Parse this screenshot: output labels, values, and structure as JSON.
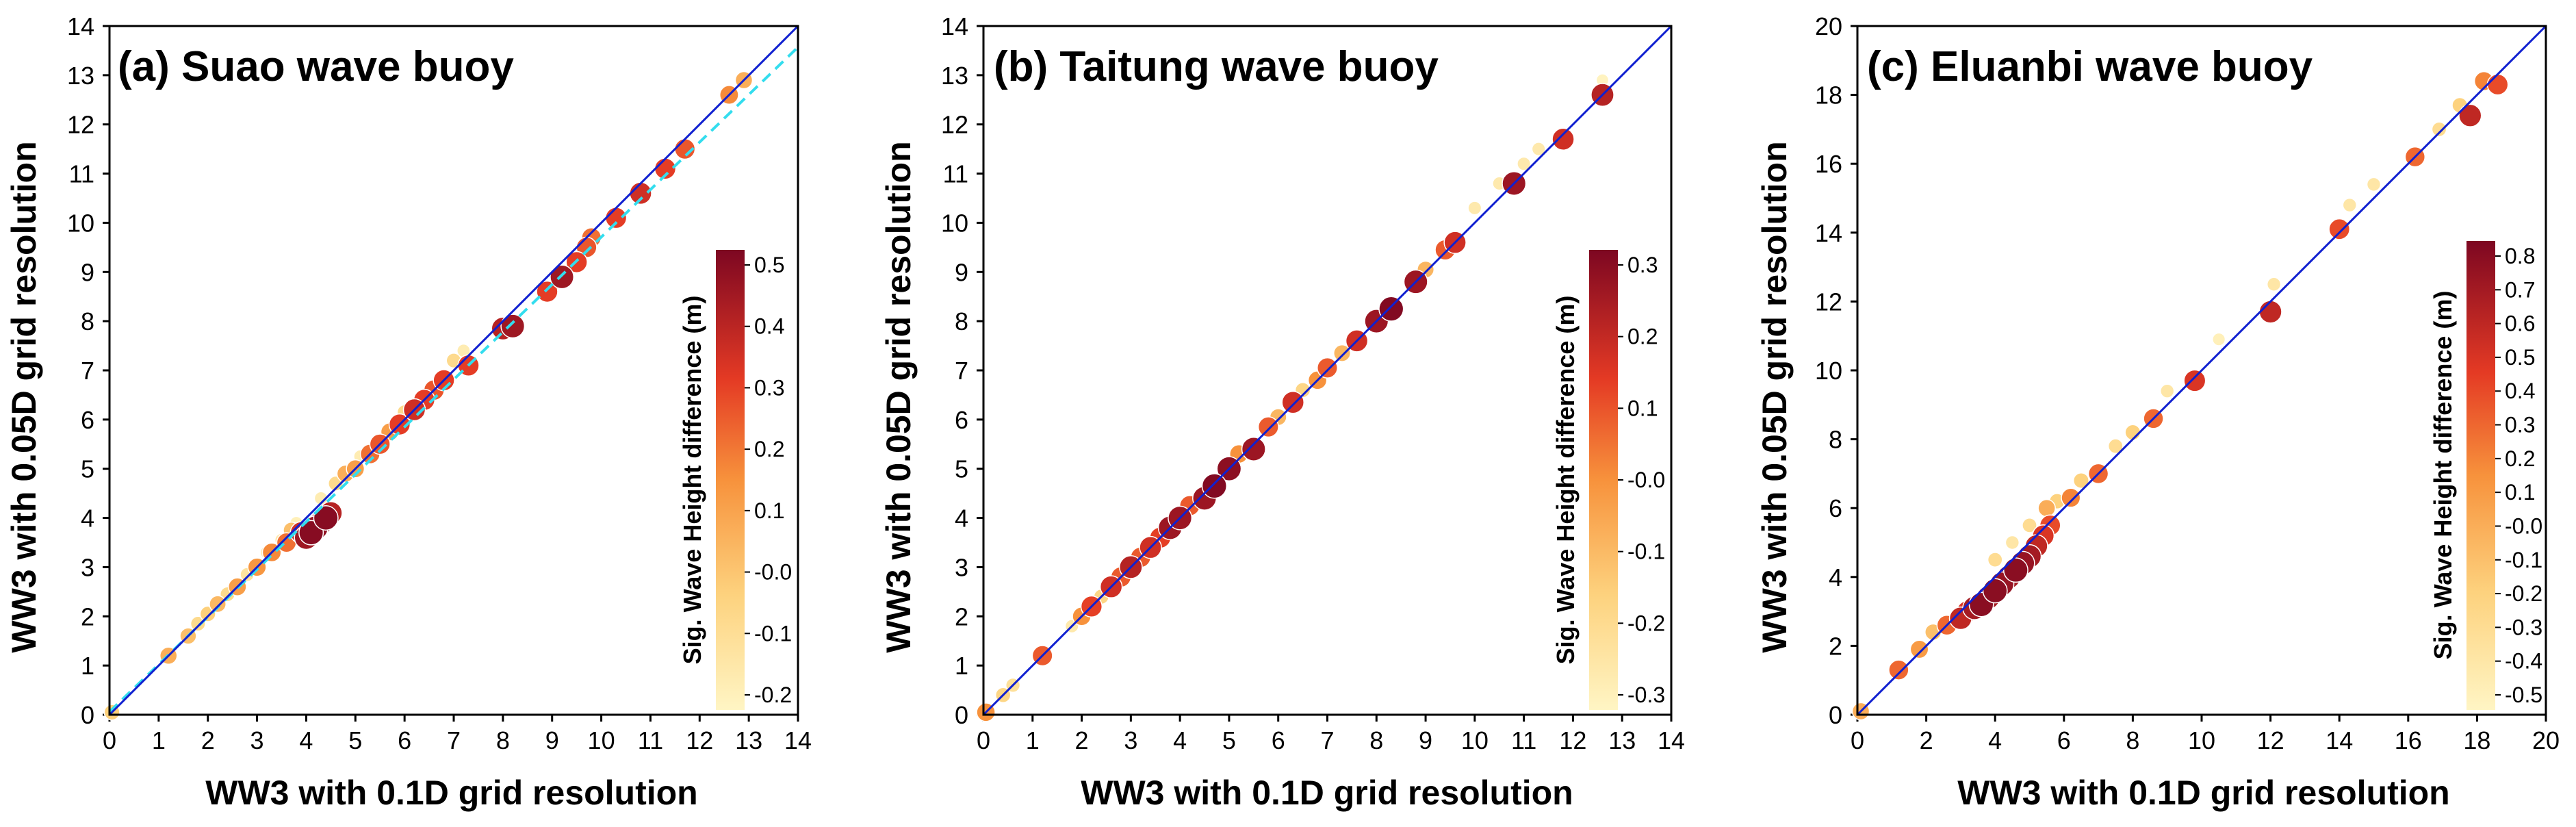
{
  "chart_data": [
    {
      "type": "scatter",
      "title": "(a) Suao wave buoy",
      "xlabel": "WW3 with 0.1D grid resolution",
      "ylabel": "WW3 with 0.05D grid resolution",
      "xlim": [
        0,
        14
      ],
      "ylim": [
        0,
        14
      ],
      "xticks": [
        "0",
        "1",
        "2",
        "3",
        "4",
        "5",
        "6",
        "7",
        "8",
        "9",
        "10",
        "11",
        "12",
        "13",
        "14"
      ],
      "yticks": [
        "0",
        "1",
        "2",
        "3",
        "4",
        "5",
        "6",
        "7",
        "8",
        "9",
        "10",
        "11",
        "12",
        "13",
        "14"
      ],
      "reference_line": "1:1",
      "fit_line": {
        "style": "dashed",
        "color": "#33ddee",
        "slope": 0.965,
        "intercept": 0.06
      },
      "colorbar": {
        "label": "Sig. Wave Height difference (m)",
        "min": -0.25,
        "max": 0.52,
        "ticks": [
          "0.5",
          "0.4",
          "0.3",
          "0.2",
          "0.1",
          "-0.0",
          "-0.1",
          "-0.2"
        ]
      },
      "points": [
        [
          0.05,
          0.05,
          -0.05
        ],
        [
          1.2,
          1.2,
          0.05
        ],
        [
          1.6,
          1.6,
          0.0
        ],
        [
          1.8,
          1.85,
          -0.1
        ],
        [
          2.0,
          2.05,
          -0.05
        ],
        [
          2.2,
          2.25,
          0.02
        ],
        [
          2.4,
          2.45,
          -0.1
        ],
        [
          2.6,
          2.6,
          0.1
        ],
        [
          2.8,
          2.85,
          -0.15
        ],
        [
          3.0,
          3.0,
          0.12
        ],
        [
          3.2,
          3.3,
          -0.2
        ],
        [
          3.3,
          3.3,
          0.15
        ],
        [
          3.5,
          3.55,
          -0.18
        ],
        [
          3.6,
          3.5,
          0.2
        ],
        [
          3.7,
          3.75,
          0.0
        ],
        [
          3.8,
          3.9,
          -0.22
        ],
        [
          3.9,
          3.7,
          0.35
        ],
        [
          4.0,
          3.6,
          0.45
        ],
        [
          4.1,
          3.7,
          0.5
        ],
        [
          4.2,
          3.8,
          0.48
        ],
        [
          4.3,
          3.9,
          0.45
        ],
        [
          4.4,
          4.0,
          0.5
        ],
        [
          4.5,
          4.1,
          0.4
        ],
        [
          4.3,
          4.4,
          -0.2
        ],
        [
          4.6,
          4.7,
          -0.1
        ],
        [
          4.8,
          4.9,
          0.05
        ],
        [
          5.0,
          5.0,
          0.1
        ],
        [
          5.1,
          5.25,
          -0.2
        ],
        [
          5.3,
          5.3,
          0.2
        ],
        [
          5.5,
          5.5,
          0.25
        ],
        [
          5.7,
          5.75,
          0.1
        ],
        [
          5.9,
          5.9,
          0.3
        ],
        [
          6.0,
          6.15,
          -0.1
        ],
        [
          6.2,
          6.2,
          0.35
        ],
        [
          6.4,
          6.4,
          0.3
        ],
        [
          6.6,
          6.6,
          0.25
        ],
        [
          6.8,
          6.8,
          0.3
        ],
        [
          7.0,
          7.2,
          -0.1
        ],
        [
          7.2,
          7.4,
          -0.2
        ],
        [
          7.3,
          7.1,
          0.3
        ],
        [
          8.0,
          7.85,
          0.4
        ],
        [
          8.2,
          7.9,
          0.45
        ],
        [
          8.9,
          8.6,
          0.3
        ],
        [
          9.2,
          8.9,
          0.45
        ],
        [
          9.5,
          9.2,
          0.3
        ],
        [
          9.7,
          9.5,
          0.25
        ],
        [
          9.8,
          9.7,
          0.2
        ],
        [
          10.3,
          10.1,
          0.3
        ],
        [
          10.8,
          10.6,
          0.35
        ],
        [
          11.3,
          11.1,
          0.3
        ],
        [
          11.7,
          11.5,
          0.25
        ],
        [
          12.6,
          12.6,
          0.15
        ],
        [
          12.9,
          12.9,
          0.05
        ]
      ]
    },
    {
      "type": "scatter",
      "title": "(b) Taitung wave buoy",
      "xlabel": "WW3 with 0.1D grid resolution",
      "ylabel": "WW3 with 0.05D grid resolution",
      "xlim": [
        0,
        14
      ],
      "ylim": [
        0,
        14
      ],
      "xticks": [
        "0",
        "1",
        "2",
        "3",
        "4",
        "5",
        "6",
        "7",
        "8",
        "9",
        "10",
        "11",
        "12",
        "13",
        "14"
      ],
      "yticks": [
        "0",
        "1",
        "2",
        "3",
        "4",
        "5",
        "6",
        "7",
        "8",
        "9",
        "10",
        "11",
        "12",
        "13",
        "14"
      ],
      "reference_line": "1:1",
      "colorbar": {
        "label": "Sig. Wave Height difference (m)",
        "min": -0.36,
        "max": 0.36,
        "ticks": [
          "0.3",
          "0.2",
          "0.1",
          "-0.0",
          "-0.1",
          "-0.2",
          "-0.3"
        ]
      },
      "points": [
        [
          0.05,
          0.05,
          0.0
        ],
        [
          0.4,
          0.4,
          -0.2
        ],
        [
          0.6,
          0.6,
          -0.25
        ],
        [
          1.2,
          1.2,
          0.1
        ],
        [
          1.8,
          1.8,
          -0.3
        ],
        [
          2.0,
          2.0,
          0.0
        ],
        [
          2.2,
          2.2,
          0.15
        ],
        [
          2.4,
          2.4,
          -0.2
        ],
        [
          2.6,
          2.6,
          0.2
        ],
        [
          2.8,
          2.8,
          0.1
        ],
        [
          3.0,
          3.0,
          0.25
        ],
        [
          3.2,
          3.2,
          0.1
        ],
        [
          3.4,
          3.4,
          0.2
        ],
        [
          3.6,
          3.6,
          0.15
        ],
        [
          3.8,
          3.8,
          0.3
        ],
        [
          4.0,
          4.0,
          0.3
        ],
        [
          4.2,
          4.25,
          0.1
        ],
        [
          4.5,
          4.4,
          0.3
        ],
        [
          4.7,
          4.65,
          0.35
        ],
        [
          5.0,
          5.0,
          0.33
        ],
        [
          5.2,
          5.3,
          0.0
        ],
        [
          5.5,
          5.4,
          0.3
        ],
        [
          5.8,
          5.85,
          0.1
        ],
        [
          6.0,
          6.05,
          -0.1
        ],
        [
          6.3,
          6.35,
          0.2
        ],
        [
          6.5,
          6.6,
          -0.2
        ],
        [
          6.8,
          6.8,
          0.0
        ],
        [
          7.0,
          7.05,
          0.1
        ],
        [
          7.3,
          7.35,
          -0.1
        ],
        [
          7.6,
          7.6,
          0.2
        ],
        [
          8.0,
          8.0,
          0.3
        ],
        [
          8.3,
          8.25,
          0.35
        ],
        [
          8.8,
          8.8,
          0.3
        ],
        [
          9.0,
          9.05,
          -0.1
        ],
        [
          9.4,
          9.45,
          0.1
        ],
        [
          9.6,
          9.6,
          0.2
        ],
        [
          10.0,
          10.3,
          -0.3
        ],
        [
          10.5,
          10.8,
          -0.3
        ],
        [
          10.8,
          10.8,
          0.3
        ],
        [
          11.0,
          11.2,
          -0.3
        ],
        [
          11.3,
          11.5,
          -0.3
        ],
        [
          11.8,
          11.7,
          0.2
        ],
        [
          12.6,
          12.9,
          -0.35
        ],
        [
          12.6,
          12.6,
          0.25
        ]
      ]
    },
    {
      "type": "scatter",
      "title": "(c) Eluanbi wave buoy",
      "xlabel": "WW3 with 0.1D grid resolution",
      "ylabel": "WW3 with 0.05D grid resolution",
      "xlim": [
        0,
        20
      ],
      "ylim": [
        0,
        20
      ],
      "xticks": [
        "0",
        "2",
        "4",
        "6",
        "8",
        "10",
        "12",
        "14",
        "16",
        "18",
        "20"
      ],
      "yticks": [
        "0",
        "2",
        "4",
        "6",
        "8",
        "10",
        "12",
        "14",
        "16",
        "18",
        "20"
      ],
      "reference_line": "1:1",
      "colorbar": {
        "label": "Sig. Wave Height difference (m)",
        "min": -0.55,
        "max": 0.85,
        "ticks": [
          "0.8",
          "0.7",
          "0.6",
          "0.5",
          "0.4",
          "0.3",
          "0.2",
          "0.1",
          "-0.0",
          "-0.1",
          "-0.2",
          "-0.3",
          "-0.4",
          "-0.5"
        ]
      },
      "points": [
        [
          0.1,
          0.1,
          0.0
        ],
        [
          1.2,
          1.3,
          0.3
        ],
        [
          1.8,
          1.9,
          0.1
        ],
        [
          2.2,
          2.4,
          -0.1
        ],
        [
          2.6,
          2.6,
          0.3
        ],
        [
          3.0,
          2.8,
          0.6
        ],
        [
          3.2,
          3.0,
          0.5
        ],
        [
          3.4,
          3.1,
          0.7
        ],
        [
          3.6,
          3.2,
          0.8
        ],
        [
          3.8,
          3.4,
          0.7
        ],
        [
          4.0,
          3.6,
          0.8
        ],
        [
          4.2,
          3.8,
          0.75
        ],
        [
          4.4,
          4.0,
          0.7
        ],
        [
          4.6,
          4.2,
          0.8
        ],
        [
          4.8,
          4.4,
          0.75
        ],
        [
          5.0,
          4.6,
          0.7
        ],
        [
          5.2,
          4.9,
          0.6
        ],
        [
          5.4,
          5.2,
          0.5
        ],
        [
          5.6,
          5.5,
          0.4
        ],
        [
          4.0,
          4.5,
          -0.3
        ],
        [
          4.5,
          5.0,
          -0.4
        ],
        [
          5.0,
          5.5,
          -0.3
        ],
        [
          5.5,
          6.0,
          0.0
        ],
        [
          5.8,
          6.2,
          -0.2
        ],
        [
          6.2,
          6.3,
          0.2
        ],
        [
          6.5,
          6.8,
          -0.2
        ],
        [
          7.0,
          7.0,
          0.3
        ],
        [
          7.5,
          7.8,
          -0.3
        ],
        [
          8.0,
          8.2,
          -0.2
        ],
        [
          8.6,
          8.6,
          0.3
        ],
        [
          9.0,
          9.4,
          -0.4
        ],
        [
          9.8,
          9.7,
          0.5
        ],
        [
          10.5,
          10.9,
          -0.5
        ],
        [
          12.0,
          11.7,
          0.6
        ],
        [
          12.1,
          12.5,
          -0.4
        ],
        [
          14.0,
          14.1,
          0.4
        ],
        [
          14.3,
          14.8,
          -0.4
        ],
        [
          15.0,
          15.4,
          -0.4
        ],
        [
          16.2,
          16.2,
          0.3
        ],
        [
          16.9,
          17.0,
          -0.3
        ],
        [
          17.5,
          17.7,
          -0.2
        ],
        [
          17.8,
          17.4,
          0.6
        ],
        [
          18.2,
          18.4,
          0.2
        ],
        [
          18.6,
          18.3,
          0.4
        ]
      ]
    }
  ]
}
